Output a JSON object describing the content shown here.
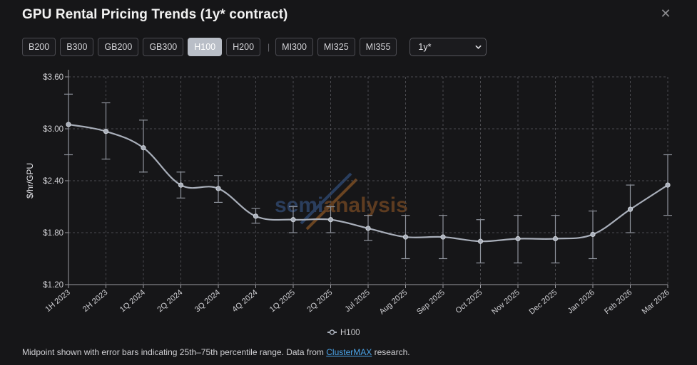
{
  "header": {
    "title": "GPU Rental Pricing Trends (1y* contract)",
    "close_icon": "close-icon"
  },
  "toolbar": {
    "gpus_nvidia": [
      "B200",
      "B300",
      "GB200",
      "GB300",
      "H100",
      "H200"
    ],
    "separator": "|",
    "gpus_amd": [
      "MI300",
      "MI325",
      "MI355"
    ],
    "active": "H100",
    "contract_select": {
      "value": "1y*"
    }
  },
  "watermark": {
    "part1": "semi",
    "part2": "analysis"
  },
  "footnote": {
    "prefix": "Midpoint shown with error bars indicating 25th–75th percentile range. Data from ",
    "link": "ClusterMAX",
    "suffix": " research."
  },
  "colors": {
    "series": "#a9afba",
    "grid": "#4a4a4f",
    "axis": "#9a9aa0"
  },
  "chart_data": {
    "type": "line",
    "ylabel": "$/hr/GPU",
    "ylim": [
      1.2,
      3.6
    ],
    "yticks": [
      1.2,
      1.8,
      2.4,
      3.0,
      3.6
    ],
    "ytick_labels": [
      "$1.20",
      "$1.80",
      "$2.40",
      "$3.00",
      "$3.60"
    ],
    "grid": true,
    "legend": "bottom-center",
    "categories": [
      "1H 2023",
      "2H 2023",
      "1Q 2024",
      "2Q 2024",
      "3Q 2024",
      "4Q 2024",
      "1Q 2025",
      "2Q 2025",
      "Jul 2025",
      "Aug 2025",
      "Sep 2025",
      "Oct 2025",
      "Nov 2025",
      "Dec 2025",
      "Jan 2026",
      "Feb 2026",
      "Mar 2026"
    ],
    "series": [
      {
        "name": "H100",
        "values": [
          3.05,
          2.97,
          2.78,
          2.35,
          2.31,
          1.99,
          1.95,
          1.95,
          1.85,
          1.75,
          1.75,
          1.7,
          1.73,
          1.73,
          1.78,
          2.07,
          2.35
        ],
        "low": [
          2.7,
          2.65,
          2.5,
          2.2,
          2.15,
          1.91,
          1.8,
          1.8,
          1.71,
          1.5,
          1.5,
          1.45,
          1.45,
          1.45,
          1.5,
          1.8,
          2.0
        ],
        "high": [
          3.4,
          3.3,
          3.1,
          2.5,
          2.46,
          2.08,
          2.1,
          2.1,
          2.0,
          2.0,
          2.0,
          1.95,
          2.0,
          2.0,
          2.05,
          2.35,
          2.7
        ]
      }
    ]
  }
}
